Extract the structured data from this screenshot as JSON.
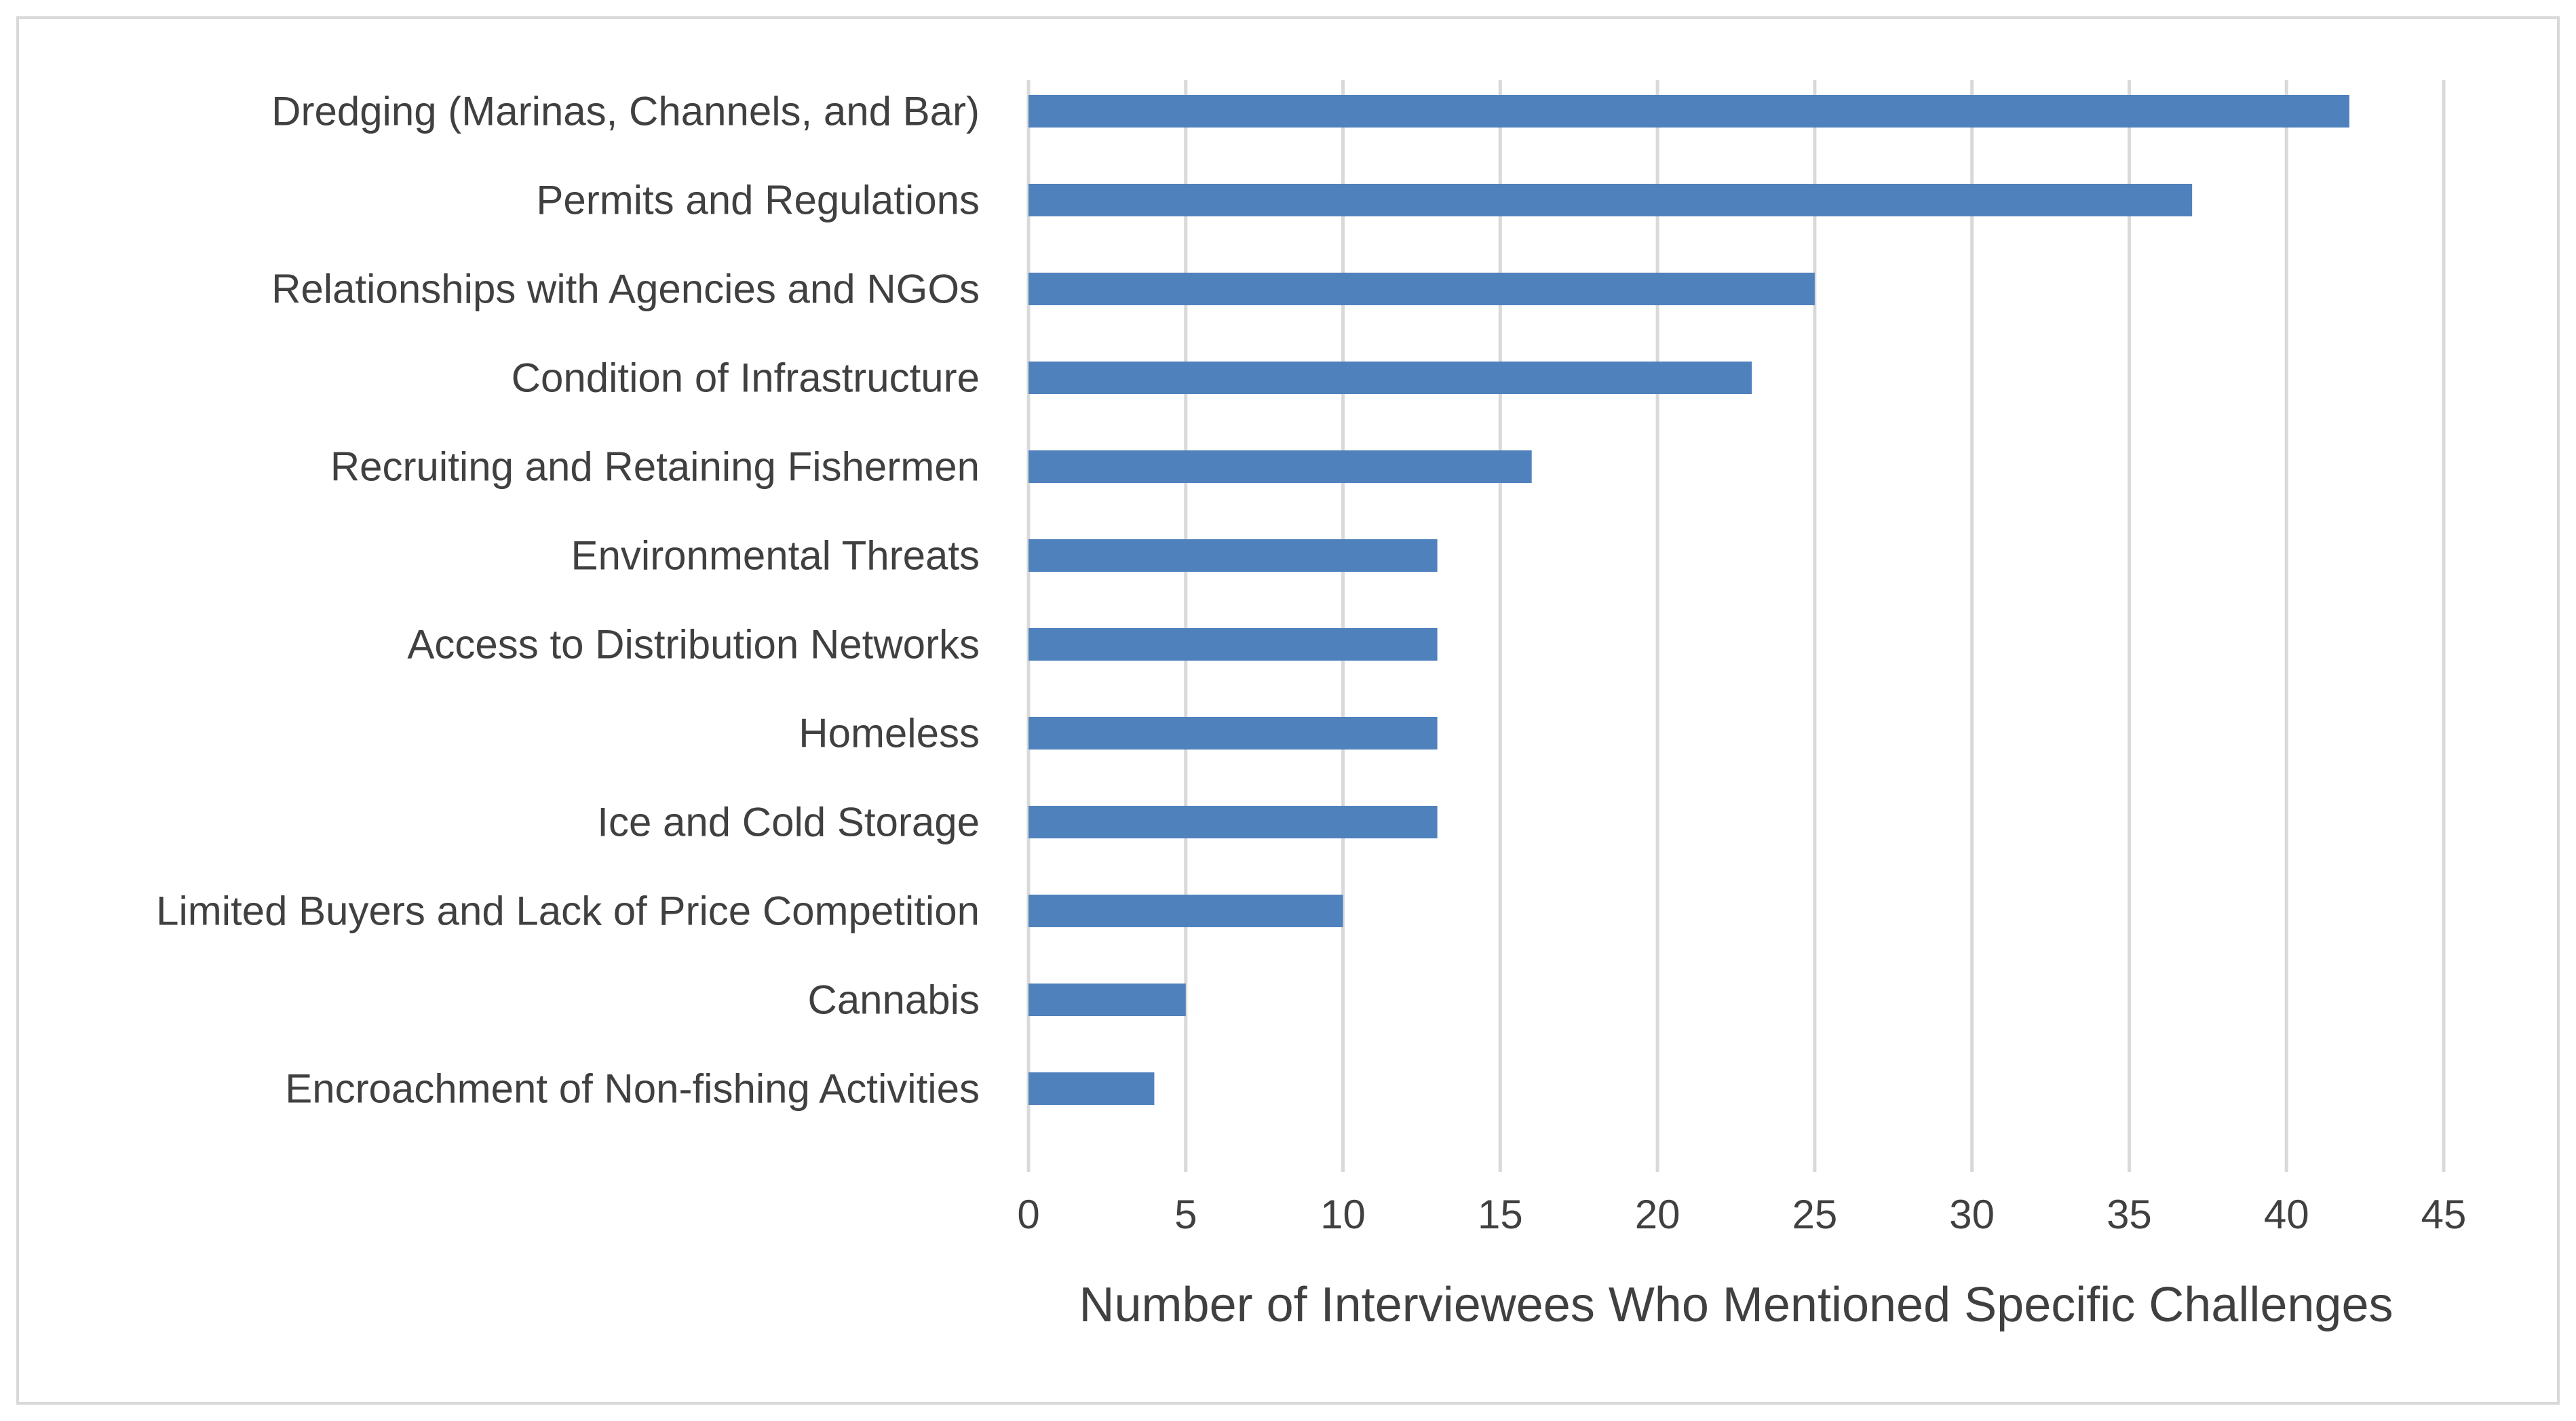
{
  "chart_data": {
    "type": "bar",
    "orientation": "horizontal",
    "title": "",
    "xlabel": "Number of Interviewees Who Mentioned Specific Challenges",
    "ylabel": "",
    "xlim": [
      0,
      45
    ],
    "xticks": [
      0,
      5,
      10,
      15,
      20,
      25,
      30,
      35,
      40,
      45
    ],
    "grid": "vertical",
    "legend": "none",
    "bar_color": "#4f81bd",
    "grid_color": "#d9d9d9",
    "categories": [
      "Dredging (Marinas, Channels, and Bar)",
      "Permits and Regulations",
      "Relationships with Agencies and NGOs",
      "Condition of Infrastructure",
      "Recruiting and Retaining Fishermen",
      "Environmental Threats",
      "Access to Distribution Networks",
      "Homeless",
      "Ice and Cold Storage",
      "Limited Buyers and Lack of Price Competition",
      "Cannabis",
      "Encroachment of Non-fishing Activities"
    ],
    "values": [
      42,
      37,
      25,
      23,
      16,
      13,
      13,
      13,
      13,
      10,
      5,
      4
    ]
  }
}
